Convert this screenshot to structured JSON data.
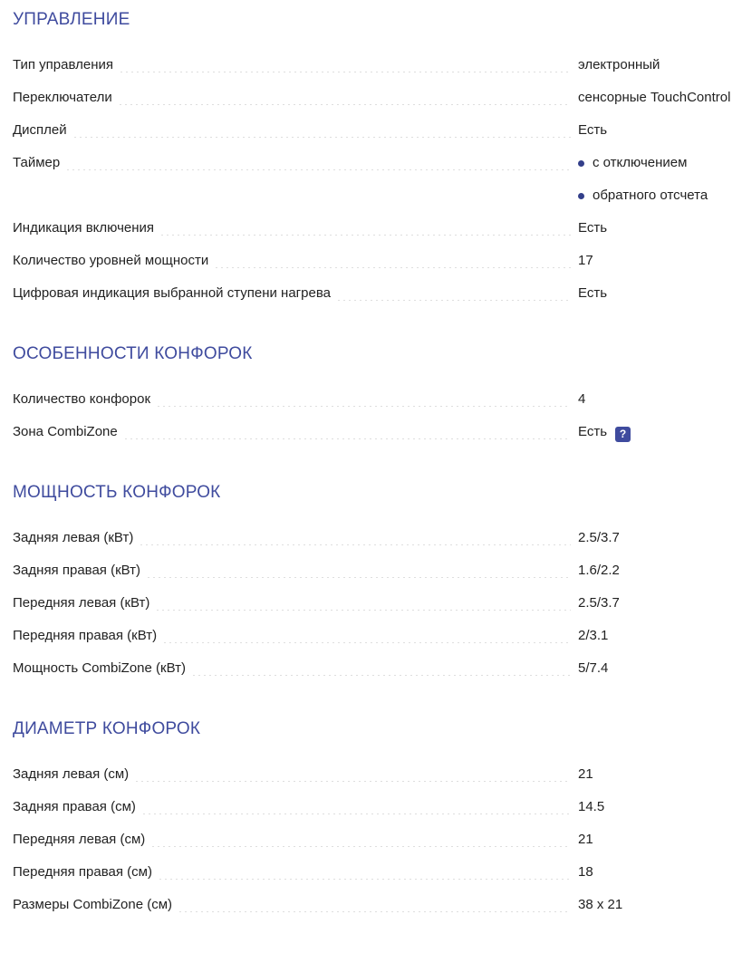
{
  "page": {
    "colors": {
      "heading": "#3f4b9e",
      "bullet": "#333f8a",
      "help_badge_bg": "#3f4b9e",
      "help_badge_fg": "#ffffff",
      "text": "#222222",
      "leader_dots": "#dedede"
    },
    "icons": {
      "help_icon_glyph": "?",
      "bullet_icon": "filled-circle"
    },
    "sections": [
      {
        "title": "УПРАВЛЕНИЕ",
        "rows": [
          {
            "label": "Тип управления",
            "value": "электронный"
          },
          {
            "label": "Переключатели",
            "value": "сенсорные TouchControl"
          },
          {
            "label": "Дисплей",
            "value": "Есть"
          },
          {
            "label": "Таймер",
            "bullets": [
              "с отключением",
              "обратного отсчета"
            ]
          },
          {
            "label": "Индикация включения",
            "value": "Есть"
          },
          {
            "label": "Количество уровней мощности",
            "value": "17"
          },
          {
            "label": "Цифровая индикация выбранной ступени нагрева",
            "value": "Есть"
          }
        ]
      },
      {
        "title": "ОСОБЕННОСТИ КОНФОРОК",
        "rows": [
          {
            "label": "Количество конфорок",
            "value": "4"
          },
          {
            "label": "Зона CombiZone",
            "value": "Есть",
            "help": "?"
          }
        ]
      },
      {
        "title": "МОЩНОСТЬ КОНФОРОК",
        "rows": [
          {
            "label": "Задняя левая (кВт)",
            "value": "2.5/3.7"
          },
          {
            "label": "Задняя правая (кВт)",
            "value": "1.6/2.2"
          },
          {
            "label": "Передняя левая (кВт)",
            "value": "2.5/3.7"
          },
          {
            "label": "Передняя правая (кВт)",
            "value": "2/3.1"
          },
          {
            "label": "Мощность CombiZone (кВт)",
            "value": "5/7.4"
          }
        ]
      },
      {
        "title": "ДИАМЕТР КОНФОРОК",
        "rows": [
          {
            "label": "Задняя левая (см)",
            "value": "21"
          },
          {
            "label": "Задняя правая (см)",
            "value": "14.5"
          },
          {
            "label": "Передняя левая (см)",
            "value": "21"
          },
          {
            "label": "Передняя правая (см)",
            "value": "18"
          },
          {
            "label": "Размеры CombiZone (см)",
            "value": "38 x 21"
          }
        ]
      }
    ]
  }
}
